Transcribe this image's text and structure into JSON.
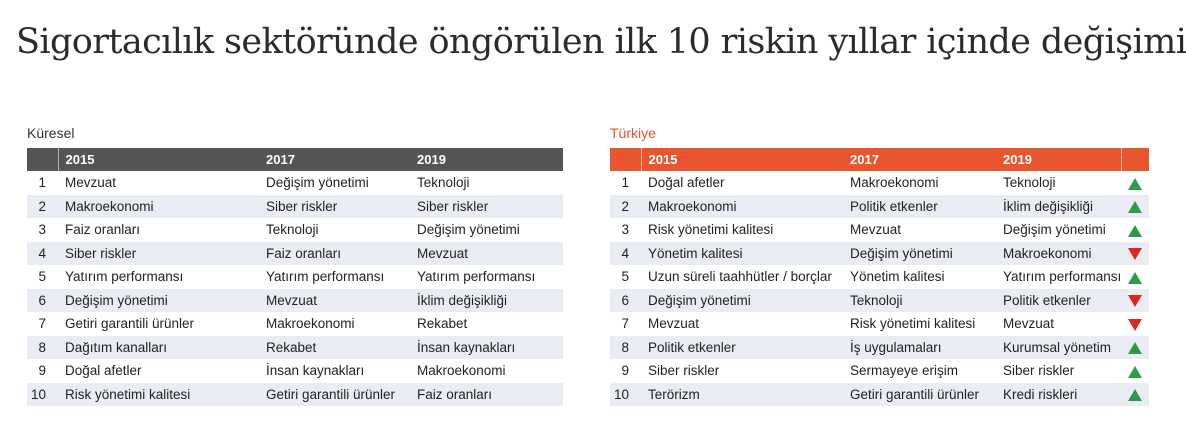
{
  "title": "Sigortacılık sektöründe öngörülen ilk 10 riskin yıllar içinde değişimi",
  "colors": {
    "global_header": "#555555",
    "turkey_accent": "#e8552f",
    "row_stripe": "#eaecf3",
    "trend_up": "#2f9a48",
    "trend_down": "#d9281c"
  },
  "global": {
    "label": "Küresel",
    "headers": [
      "2015",
      "2017",
      "2019"
    ],
    "rows": [
      {
        "rank": "1",
        "y2015": "Mevzuat",
        "y2017": "Değişim yönetimi",
        "y2019": "Teknoloji"
      },
      {
        "rank": "2",
        "y2015": "Makroekonomi",
        "y2017": "Siber riskler",
        "y2019": "Siber riskler"
      },
      {
        "rank": "3",
        "y2015": "Faiz oranları",
        "y2017": "Teknoloji",
        "y2019": "Değişim yönetimi"
      },
      {
        "rank": "4",
        "y2015": "Siber riskler",
        "y2017": "Faiz oranları",
        "y2019": "Mevzuat"
      },
      {
        "rank": "5",
        "y2015": "Yatırım performansı",
        "y2017": "Yatırım performansı",
        "y2019": "Yatırım performansı"
      },
      {
        "rank": "6",
        "y2015": "Değişim yönetimi",
        "y2017": "Mevzuat",
        "y2019": "İklim değişikliği"
      },
      {
        "rank": "7",
        "y2015": "Getiri garantili ürünler",
        "y2017": "Makroekonomi",
        "y2019": "Rekabet"
      },
      {
        "rank": "8",
        "y2015": "Dağıtım kanalları",
        "y2017": "Rekabet",
        "y2019": "İnsan kaynakları"
      },
      {
        "rank": "9",
        "y2015": "Doğal afetler",
        "y2017": "İnsan kaynakları",
        "y2019": "Makroekonomi"
      },
      {
        "rank": "10",
        "y2015": "Risk yönetimi kalitesi",
        "y2017": "Getiri garantili ürünler",
        "y2019": "Faiz oranları"
      }
    ]
  },
  "turkey": {
    "label": "Türkiye",
    "headers": [
      "2015",
      "2017",
      "2019"
    ],
    "rows": [
      {
        "rank": "1",
        "y2015": "Doğal afetler",
        "y2017": "Makroekonomi",
        "y2019": "Teknoloji",
        "trend": "up"
      },
      {
        "rank": "2",
        "y2015": "Makroekonomi",
        "y2017": "Politik etkenler",
        "y2019": "İklim değişikliği",
        "trend": "up"
      },
      {
        "rank": "3",
        "y2015": "Risk yönetimi kalitesi",
        "y2017": "Mevzuat",
        "y2019": "Değişim yönetimi",
        "trend": "up"
      },
      {
        "rank": "4",
        "y2015": "Yönetim kalitesi",
        "y2017": "Değişim yönetimi",
        "y2019": "Makroekonomi",
        "trend": "down"
      },
      {
        "rank": "5",
        "y2015": "Uzun süreli taahhütler / borçlar",
        "y2017": "Yönetim kalitesi",
        "y2019": "Yatırım performansı",
        "trend": "up"
      },
      {
        "rank": "6",
        "y2015": "Değişim yönetimi",
        "y2017": "Teknoloji",
        "y2019": "Politik etkenler",
        "trend": "down"
      },
      {
        "rank": "7",
        "y2015": "Mevzuat",
        "y2017": "Risk yönetimi kalitesi",
        "y2019": "Mevzuat",
        "trend": "down"
      },
      {
        "rank": "8",
        "y2015": "Politik etkenler",
        "y2017": "İş uygulamaları",
        "y2019": "Kurumsal yönetim",
        "trend": "up"
      },
      {
        "rank": "9",
        "y2015": "Siber riskler",
        "y2017": "Sermayeye erişim",
        "y2019": "Siber riskler",
        "trend": "up"
      },
      {
        "rank": "10",
        "y2015": "Terörizm",
        "y2017": "Getiri garantili ürünler",
        "y2019": "Kredi riskleri",
        "trend": "up"
      }
    ]
  }
}
